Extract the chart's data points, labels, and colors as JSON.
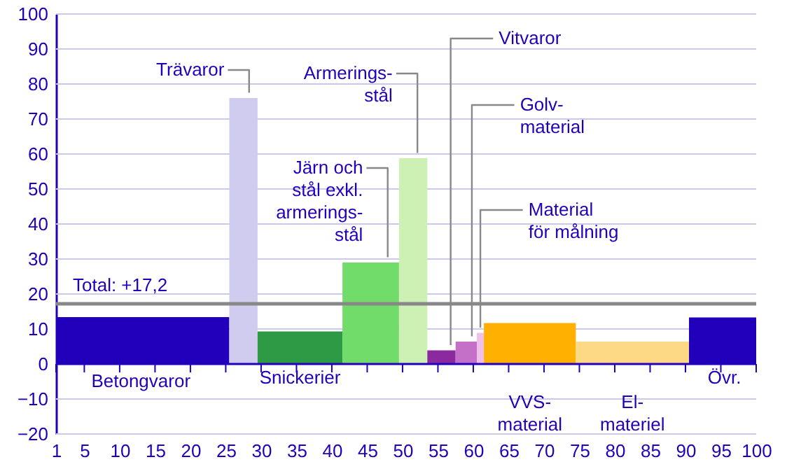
{
  "chart_data": {
    "type": "histogram",
    "bins": [
      1,
      25.5,
      29.5,
      41.5,
      49.5,
      53.5,
      57.5,
      60.5,
      61.5,
      74.5,
      90.5,
      100
    ],
    "values": [
      13.4,
      76,
      9.3,
      29,
      58.8,
      3.9,
      6.4,
      8.9,
      11.7,
      6.4,
      13.3
    ],
    "colors": [
      "#2200bb",
      "#d0ccf0",
      "#2e9a45",
      "#72dc6a",
      "#cdf0b4",
      "#8b2a9e",
      "#c46fc8",
      "#f0c0ea",
      "#ffb000",
      "#fdd985",
      "#2200bb"
    ],
    "xlim": [
      1,
      100
    ],
    "xticks": [
      1,
      5,
      10,
      15,
      20,
      25,
      30,
      35,
      40,
      45,
      50,
      55,
      60,
      65,
      70,
      75,
      80,
      85,
      90,
      95,
      100
    ],
    "ylim": [
      -20,
      100
    ],
    "yticks": [
      -20,
      -10,
      0,
      10,
      20,
      30,
      40,
      50,
      60,
      70,
      80,
      90,
      100
    ],
    "grid": "y",
    "ref_lines": [
      {
        "axis": "y",
        "value": 17.2,
        "label": "Total: +17,2",
        "color": "#888888"
      },
      {
        "axis": "y",
        "value": 0,
        "color": "#2200bb"
      }
    ],
    "annotations": [
      "Betongvaror",
      {
        "text": "Trävaror",
        "x": 28.3,
        "y": 76
      },
      "Snickerier",
      {
        "text": "Järn och\nstål exkl.\narmerings-\nstål",
        "x": 47.9,
        "y": 29
      },
      {
        "text": "Armerings-\nstål",
        "x": 52.1,
        "y": 58.8
      },
      {
        "text": "Vitvaror",
        "x": 56.8,
        "y": 3.9
      },
      {
        "text": "Golv-\nmaterial",
        "x": 59.8,
        "y": 6.4
      },
      {
        "text": "Material\nför målning",
        "x": 61,
        "y": 8.9
      },
      "VVS-\nmaterial",
      "El-\nmateriel",
      "Övr."
    ]
  }
}
